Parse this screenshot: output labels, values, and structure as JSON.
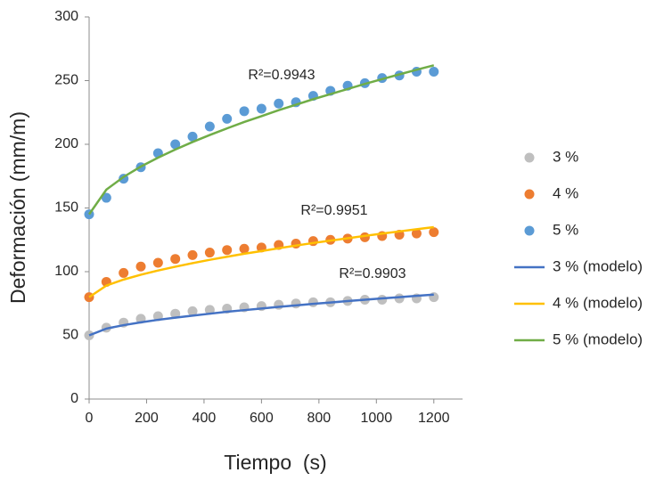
{
  "chart_data": {
    "type": "scatter",
    "x_label": "Tiempo  (s)",
    "y_label": "Deformación (mm/m)",
    "x": [
      0,
      60,
      120,
      180,
      240,
      300,
      360,
      420,
      480,
      540,
      600,
      660,
      720,
      780,
      840,
      900,
      960,
      1020,
      1080,
      1140,
      1200
    ],
    "xlim": [
      0,
      1300
    ],
    "xticks": [
      0,
      200,
      400,
      600,
      800,
      1000,
      1200
    ],
    "ylim": [
      0,
      300
    ],
    "yticks": [
      0,
      50,
      100,
      150,
      200,
      250,
      300
    ],
    "series": [
      {
        "name": "3 %",
        "color": "#bfbfbf",
        "style": "markers",
        "values": [
          50,
          56,
          60,
          63,
          65,
          67,
          69,
          70,
          71,
          72,
          73,
          74,
          75,
          76,
          76,
          77,
          78,
          78,
          79,
          79,
          80
        ]
      },
      {
        "name": "4 %",
        "color": "#ed7d31",
        "style": "markers",
        "values": [
          80,
          92,
          99,
          104,
          107,
          110,
          113,
          115,
          117,
          118,
          119,
          121,
          122,
          124,
          125,
          126,
          127,
          128,
          129,
          130,
          131
        ]
      },
      {
        "name": "5 %",
        "color": "#5b9bd5",
        "style": "markers",
        "values": [
          145,
          158,
          173,
          182,
          193,
          200,
          206,
          214,
          220,
          226,
          228,
          232,
          233,
          238,
          242,
          246,
          248,
          252,
          254,
          257,
          257
        ]
      },
      {
        "name": "3 % (modelo)",
        "color": "#4472c4",
        "style": "line",
        "values": [
          50,
          55.3,
          58.0,
          60.2,
          62.2,
          63.9,
          65.5,
          67.0,
          68.5,
          69.8,
          71.1,
          72.4,
          73.5,
          74.7,
          75.8,
          76.9,
          78.0,
          79.0,
          80.0,
          81.0,
          82
        ]
      },
      {
        "name": "4 % (modelo)",
        "color": "#ffc000",
        "style": "line",
        "values": [
          80,
          89.1,
          93.8,
          97.6,
          100.9,
          103.9,
          106.7,
          109.3,
          111.7,
          114.1,
          116.2,
          118.4,
          120.5,
          122.5,
          124.4,
          126.2,
          128.1,
          129.9,
          131.6,
          133.3,
          135
        ]
      },
      {
        "name": "5 % (modelo)",
        "color": "#70ad47",
        "style": "line",
        "values": [
          145,
          164.4,
          174.4,
          182.5,
          189.5,
          195.9,
          201.8,
          207.3,
          212.5,
          217.5,
          222.1,
          226.8,
          231.1,
          235.4,
          239.4,
          243.4,
          247.4,
          251.2,
          254.9,
          258.5,
          262
        ]
      }
    ],
    "annotations": [
      "R²=0.9943",
      "R²=0.9951",
      "R²=0.9903"
    ]
  }
}
